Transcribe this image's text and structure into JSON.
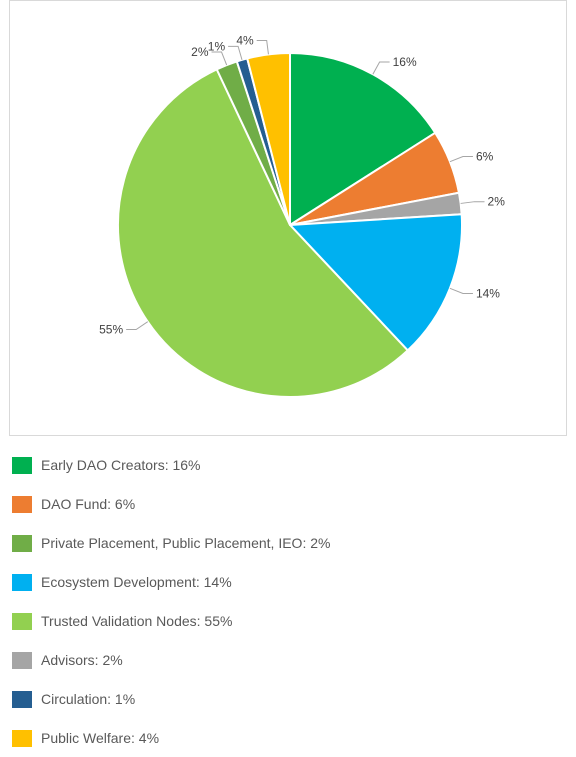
{
  "chart_data": {
    "type": "pie",
    "title": "",
    "legend_position": "bottom",
    "slices": [
      {
        "name": "Early DAO Creators",
        "value": 16,
        "label": "16%",
        "legend": "Early DAO Creators: 16%",
        "color": "#00b050"
      },
      {
        "name": "DAO Fund",
        "value": 6,
        "label": "6%",
        "legend": "DAO Fund: 6%",
        "color": "#ed7d31"
      },
      {
        "name": "Advisors",
        "value": 2,
        "label": "2%",
        "legend": "Advisors: 2%",
        "color": "#a5a5a5"
      },
      {
        "name": "Ecosystem Development",
        "value": 14,
        "label": "14%",
        "legend": "Ecosystem Development: 14%",
        "color": "#00b0f0"
      },
      {
        "name": "Trusted Validation Nodes",
        "value": 55,
        "label": "55%",
        "legend": "Trusted Validation Nodes: 55%",
        "color": "#92d050"
      },
      {
        "name": "Private Placement, Public Placement, IEO",
        "value": 2,
        "label": "2%",
        "legend": "Private Placement, Public Placement, IEO: 2%",
        "color": "#70ad47"
      },
      {
        "name": "Circulation",
        "value": 1,
        "label": "1%",
        "legend": "Circulation: 1%",
        "color": "#255e91"
      },
      {
        "name": "Public Welfare",
        "value": 4,
        "label": "4%",
        "legend": "Public Welfare: 4%",
        "color": "#ffc000"
      }
    ],
    "legend_order": [
      0,
      1,
      5,
      3,
      4,
      2,
      6,
      7
    ]
  }
}
